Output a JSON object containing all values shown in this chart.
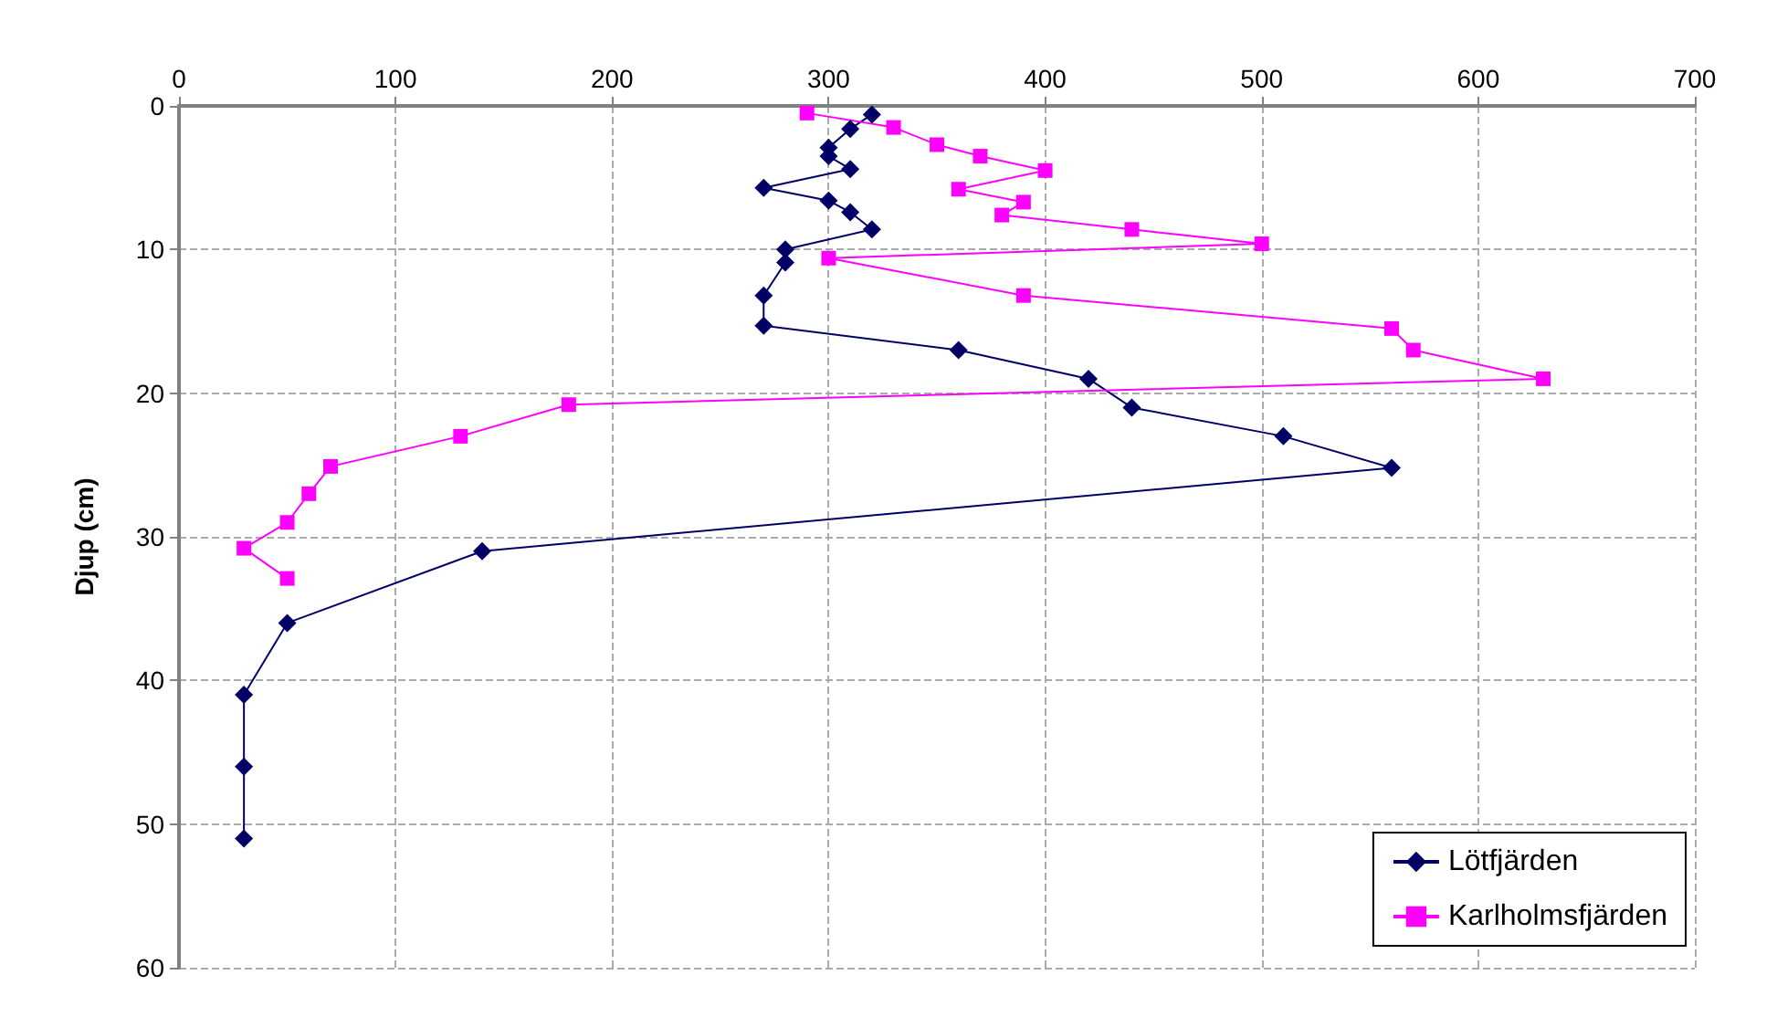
{
  "chart_data": {
    "type": "line",
    "ylabel": "Djup (cm)",
    "xlim": [
      0,
      700
    ],
    "xticks": [
      0,
      100,
      200,
      300,
      400,
      500,
      600,
      700
    ],
    "ylim": [
      60,
      0
    ],
    "yticks": [
      0,
      10,
      20,
      30,
      40,
      50,
      60
    ],
    "grid": true,
    "legend": "bottom right",
    "line_style": "solid",
    "series": [
      {
        "name": "Lötfjärden",
        "color": "#000066",
        "marker": "diamond",
        "x": [
          320,
          310,
          300,
          300,
          310,
          270,
          300,
          310,
          320,
          280,
          280,
          270,
          270,
          360,
          420,
          440,
          510,
          560,
          140,
          50,
          30,
          30,
          30
        ],
        "values": [
          0.6,
          1.6,
          2.9,
          3.5,
          4.4,
          5.7,
          6.6,
          7.4,
          8.6,
          10,
          10.9,
          13.2,
          15.3,
          17,
          19,
          21,
          23,
          25.2,
          31,
          36,
          41,
          46,
          51
        ]
      },
      {
        "name": "Karlholmsfjärden",
        "color": "#ff00ff",
        "marker": "square",
        "x": [
          290,
          330,
          350,
          370,
          400,
          360,
          390,
          380,
          440,
          500,
          300,
          390,
          560,
          570,
          630,
          180,
          130,
          70,
          60,
          50,
          30,
          50
        ],
        "values": [
          0.5,
          1.5,
          2.7,
          3.5,
          4.5,
          5.8,
          6.7,
          7.6,
          8.6,
          9.6,
          10.6,
          13.2,
          15.5,
          17,
          19,
          20.8,
          23,
          25.1,
          27,
          29,
          30.8,
          32.9
        ]
      }
    ]
  }
}
